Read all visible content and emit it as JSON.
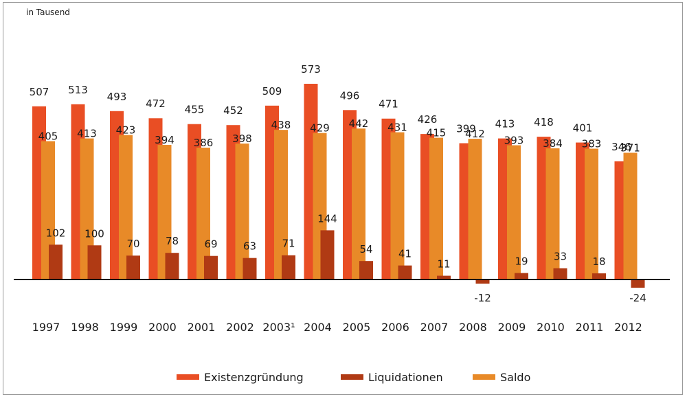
{
  "chart_data": {
    "type": "bar",
    "unit_label": "in Tausend",
    "categories": [
      "1997",
      "1998",
      "1999",
      "2000",
      "2001",
      "2002",
      "2003¹",
      "2004",
      "2005",
      "2006",
      "2007",
      "2008",
      "2009",
      "2010",
      "2011",
      "2012"
    ],
    "series": [
      {
        "name": "Existenzgründung",
        "color": "#e94e24",
        "values": [
          507,
          513,
          493,
          472,
          455,
          452,
          509,
          573,
          496,
          471,
          426,
          399,
          413,
          418,
          401,
          346
        ]
      },
      {
        "name": "Liquidationen",
        "color": "#b03a14",
        "values": [
          102,
          100,
          70,
          78,
          69,
          63,
          71,
          144,
          54,
          41,
          11,
          -12,
          19,
          33,
          18,
          -24
        ]
      },
      {
        "name": "Saldo",
        "color": "#e88a28",
        "values": [
          405,
          413,
          423,
          394,
          386,
          398,
          438,
          429,
          442,
          431,
          415,
          412,
          393,
          384,
          383,
          371
        ]
      }
    ],
    "ylim": [
      -40,
      600
    ],
    "grid": false,
    "legend_position": "bottom"
  }
}
